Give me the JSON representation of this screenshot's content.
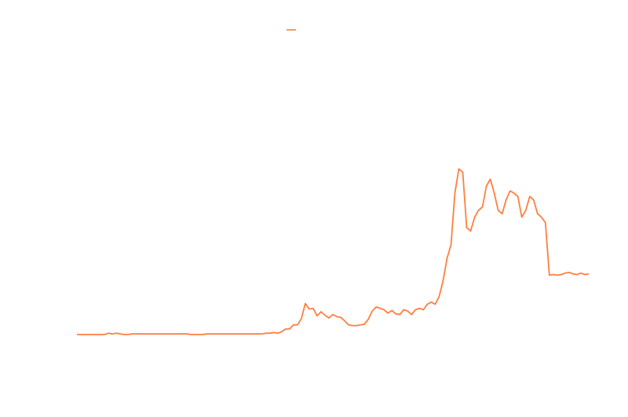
{
  "chart_data": {
    "type": "line",
    "title": "",
    "xlabel": "",
    "ylabel": "",
    "grid": false,
    "axes_visible": false,
    "legend": {
      "placement": "top-center",
      "entries": [
        {
          "label": "",
          "color": "#ff7f3f"
        }
      ]
    },
    "xlim": [
      0,
      130
    ],
    "ylim": [
      -50,
      430
    ],
    "series": [
      {
        "name": "",
        "color": "#ff7f3f",
        "x": [
          0,
          1,
          2,
          3,
          4,
          5,
          6,
          7,
          8,
          9,
          10,
          11,
          12,
          13,
          14,
          15,
          16,
          17,
          18,
          19,
          20,
          21,
          22,
          23,
          24,
          25,
          26,
          27,
          28,
          29,
          30,
          31,
          32,
          33,
          34,
          35,
          36,
          37,
          38,
          39,
          40,
          41,
          42,
          43,
          44,
          45,
          46,
          47,
          48,
          49,
          50,
          51,
          52,
          53,
          54,
          55,
          56,
          57,
          58,
          59,
          60,
          61,
          62,
          63,
          64,
          65,
          66,
          67,
          68,
          69,
          70,
          71,
          72,
          73,
          74,
          75,
          76,
          77,
          78,
          79,
          80,
          81,
          82,
          83,
          84,
          85,
          86,
          87,
          88,
          89,
          90,
          91,
          92,
          93,
          94,
          95,
          96,
          97,
          98,
          99,
          100,
          101,
          102,
          103,
          104,
          105,
          106,
          107,
          108,
          109,
          110,
          111,
          112,
          113,
          114,
          115,
          116,
          117,
          118,
          119,
          120,
          121,
          122,
          123,
          124,
          125,
          126,
          127,
          128,
          129,
          130
        ],
        "values": [
          0,
          0,
          0,
          0,
          0,
          0,
          0,
          0,
          2,
          1,
          2,
          1,
          0,
          0,
          1,
          1,
          1,
          1,
          1,
          1,
          1,
          1,
          1,
          1,
          1,
          1,
          1,
          1,
          1,
          0,
          0,
          0,
          0,
          1,
          1,
          1,
          1,
          1,
          1,
          1,
          1,
          1,
          1,
          1,
          1,
          1,
          1,
          1,
          2,
          2,
          3,
          2,
          4,
          8,
          8,
          14,
          14,
          23,
          45,
          37,
          38,
          27,
          33,
          28,
          24,
          29,
          26,
          25,
          20,
          14,
          13,
          13,
          14,
          15,
          22,
          34,
          40,
          38,
          36,
          31,
          35,
          30,
          29,
          36,
          34,
          29,
          36,
          38,
          36,
          44,
          47,
          44,
          55,
          78,
          110,
          130,
          205,
          240,
          235,
          155,
          150,
          170,
          180,
          185,
          215,
          225,
          205,
          180,
          175,
          195,
          208,
          205,
          200,
          170,
          180,
          200,
          195,
          175,
          170,
          162,
          86,
          87,
          86,
          87,
          89,
          90,
          88,
          87,
          89,
          87,
          88
        ]
      }
    ]
  }
}
